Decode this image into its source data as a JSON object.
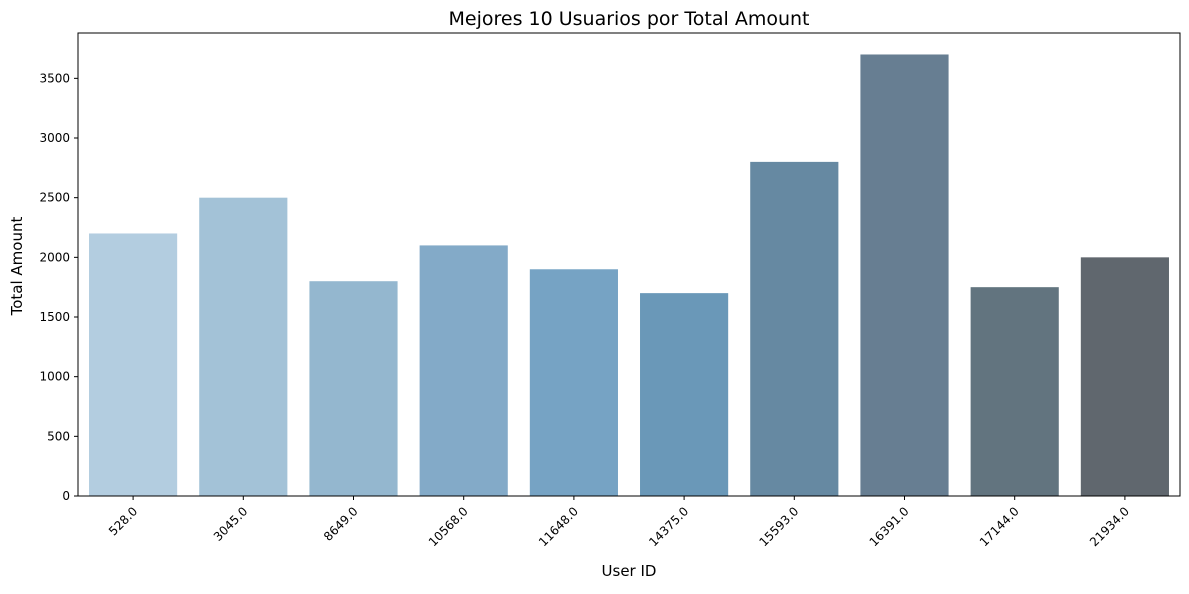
{
  "chart_data": {
    "type": "bar",
    "title": "Mejores 10 Usuarios por Total Amount",
    "xlabel": "User ID",
    "ylabel": "Total Amount",
    "categories": [
      "528.0",
      "3045.0",
      "8649.0",
      "10568.0",
      "11648.0",
      "14375.0",
      "15593.0",
      "16391.0",
      "17144.0",
      "21934.0"
    ],
    "values": [
      2200,
      2500,
      1800,
      2100,
      1900,
      1700,
      2800,
      3700,
      1750,
      2000
    ],
    "colors": [
      "#b3cde0",
      "#a3c2d7",
      "#94b7cf",
      "#83aac8",
      "#76a3c4",
      "#6a98b8",
      "#6689a2",
      "#677e92",
      "#62747f",
      "#60676e"
    ],
    "ylim": [
      0,
      3880
    ],
    "yticks": [
      0,
      500,
      1000,
      1500,
      2000,
      2500,
      3000,
      3500
    ],
    "grid": false,
    "legend": "none"
  }
}
